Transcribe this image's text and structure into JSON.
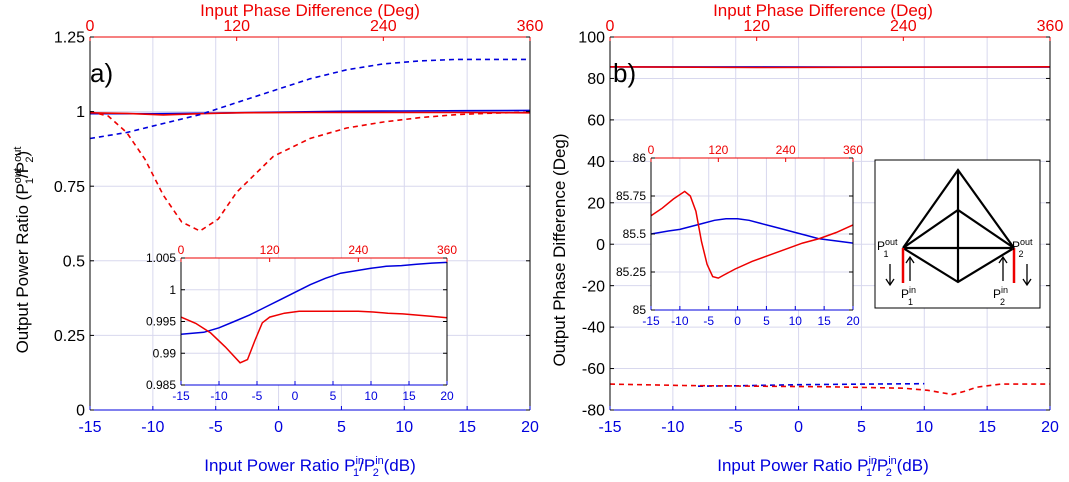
{
  "colors": {
    "blue": "#0000dd",
    "red": "#ee0000",
    "grid": "#d8d8ee",
    "axis": "#000000"
  },
  "labels": {
    "top_axis": "Input Phase Difference (Deg)",
    "bottom_axis": {
      "main": "Input Power Ratio P",
      "sup1": "in",
      "sub1": "1",
      "slash": "/P",
      "sup2": "in",
      "sub2": "2",
      "unit": " (dB)"
    },
    "a_ylabel": {
      "main": "Output Power Ratio (P",
      "sup1": "out",
      "sub1": "1",
      "slash": "/P",
      "sup2": "out",
      "sub2": "2",
      "close": ")"
    },
    "b_ylabel": "Output Phase Difference (Deg)",
    "tag_a": "a)",
    "tag_b": "b)"
  },
  "diagram": {
    "p1out": "P",
    "p1out_sup": "out",
    "p1out_sub": "1",
    "p2out": "P",
    "p2out_sup": "out",
    "p2out_sub": "2",
    "p1in": "P",
    "p1in_sup": "in",
    "p1in_sub": "1",
    "p2in": "P",
    "p2in_sup": "in",
    "p2in_sub": "2"
  },
  "chart_data": [
    {
      "id": "a",
      "type": "line",
      "x_bottom": {
        "ticks": [
          -15,
          -10,
          -5,
          0,
          5,
          10,
          15,
          20
        ],
        "lim": [
          -15,
          20
        ]
      },
      "x_top": {
        "ticks": [
          0,
          120,
          240,
          360
        ],
        "lim": [
          0,
          360
        ]
      },
      "y": {
        "ticks": [
          0,
          0.25,
          0.5,
          0.75,
          1,
          1.25
        ],
        "tick_labels": [
          "0",
          "0.25",
          "0.5",
          "0.75",
          "1",
          "1.25"
        ],
        "lim": [
          0,
          1.25
        ]
      },
      "grid": true,
      "series": [
        {
          "axis": "bottom",
          "color": "blue",
          "style": "solid",
          "x": [
            -15,
            -10,
            -5,
            0,
            5,
            10,
            15,
            20
          ],
          "y": [
            0.993,
            0.993,
            0.995,
            0.998,
            1.001,
            1.002,
            1.003,
            1.004
          ]
        },
        {
          "axis": "top",
          "color": "red",
          "style": "solid",
          "x": [
            0,
            30,
            60,
            90,
            120,
            180,
            240,
            300,
            360
          ],
          "y": [
            0.996,
            0.994,
            0.989,
            0.993,
            0.996,
            0.997,
            0.997,
            0.997,
            0.996
          ]
        },
        {
          "axis": "top",
          "color": "blue",
          "style": "dashed",
          "x": [
            0,
            30,
            60,
            90,
            120,
            150,
            180,
            210,
            240,
            270,
            300,
            330,
            360
          ],
          "y": [
            0.91,
            0.93,
            0.96,
            0.99,
            1.03,
            1.07,
            1.11,
            1.14,
            1.16,
            1.17,
            1.175,
            1.175,
            1.175
          ]
        },
        {
          "axis": "top",
          "color": "red",
          "style": "dashed",
          "x": [
            0,
            15,
            30,
            45,
            60,
            75,
            90,
            105,
            120,
            150,
            180,
            210,
            240,
            270,
            300,
            330,
            360
          ],
          "y": [
            1.0,
            0.985,
            0.93,
            0.84,
            0.72,
            0.63,
            0.6,
            0.64,
            0.73,
            0.85,
            0.91,
            0.945,
            0.965,
            0.98,
            0.99,
            0.995,
            0.998
          ]
        }
      ],
      "inset": {
        "x_bottom": {
          "ticks": [
            -15,
            -10,
            -5,
            0,
            5,
            10,
            15,
            20
          ],
          "lim": [
            -15,
            20
          ]
        },
        "x_top": {
          "ticks": [
            0,
            120,
            240,
            360
          ],
          "lim": [
            0,
            360
          ]
        },
        "y": {
          "ticks": [
            0.985,
            0.99,
            0.995,
            1,
            1.005
          ],
          "tick_labels": [
            "0.985",
            "0.99",
            "0.995",
            "1",
            "1.005"
          ],
          "lim": [
            0.985,
            1.005
          ]
        },
        "series": [
          {
            "axis": "bottom",
            "color": "blue",
            "style": "solid",
            "x": [
              -15,
              -12,
              -10,
              -8,
              -6,
              -4,
              -2,
              0,
              2,
              4,
              6,
              8,
              10,
              12,
              14,
              16,
              18,
              20
            ],
            "y": [
              0.993,
              0.9933,
              0.994,
              0.995,
              0.996,
              0.9972,
              0.9984,
              0.9996,
              1.0008,
              1.0018,
              1.0026,
              1.003,
              1.0034,
              1.0037,
              1.0038,
              1.004,
              1.0042,
              1.0043
            ]
          },
          {
            "axis": "top",
            "color": "red",
            "style": "solid",
            "x": [
              0,
              20,
              40,
              60,
              80,
              90,
              100,
              110,
              120,
              140,
              160,
              180,
              200,
              220,
              240,
              260,
              280,
              300,
              320,
              340,
              360
            ],
            "y": [
              0.9957,
              0.9947,
              0.9932,
              0.991,
              0.9885,
              0.989,
              0.992,
              0.9948,
              0.9957,
              0.9963,
              0.9966,
              0.9966,
              0.9966,
              0.9966,
              0.9966,
              0.9965,
              0.9963,
              0.9962,
              0.996,
              0.9958,
              0.9956
            ]
          }
        ]
      }
    },
    {
      "id": "b",
      "type": "line",
      "x_bottom": {
        "ticks": [
          -15,
          -10,
          -5,
          0,
          5,
          10,
          15,
          20
        ],
        "lim": [
          -15,
          20
        ]
      },
      "x_top": {
        "ticks": [
          0,
          120,
          240,
          360
        ],
        "lim": [
          0,
          360
        ]
      },
      "y": {
        "ticks": [
          -80,
          -60,
          -40,
          -20,
          0,
          20,
          40,
          60,
          80,
          100
        ],
        "tick_labels": [
          "-80",
          "-60",
          "-40",
          "-20",
          "0",
          "20",
          "40",
          "60",
          "80",
          "100"
        ],
        "lim": [
          -80,
          100
        ]
      },
      "grid": true,
      "series": [
        {
          "axis": "bottom",
          "color": "blue",
          "style": "solid",
          "x": [
            -15,
            -5,
            5,
            20
          ],
          "y": [
            85.5,
            85.55,
            85.52,
            85.48
          ]
        },
        {
          "axis": "top",
          "color": "red",
          "style": "solid",
          "x": [
            0,
            120,
            240,
            360
          ],
          "y": [
            85.6,
            85.3,
            85.45,
            85.6
          ]
        },
        {
          "axis": "bottom",
          "color": "blue",
          "style": "dashed",
          "x": [
            -8,
            -5,
            0,
            5,
            10
          ],
          "y": [
            -68.5,
            -68.3,
            -67.8,
            -67.5,
            -67.3
          ]
        },
        {
          "axis": "top",
          "color": "red",
          "style": "dashed",
          "x": [
            0,
            60,
            120,
            180,
            240,
            260,
            280,
            290,
            300,
            320,
            340,
            360
          ],
          "y": [
            -67.5,
            -68.2,
            -68.5,
            -68.8,
            -69.5,
            -70.5,
            -72.5,
            -71,
            -69,
            -67.5,
            -67.5,
            -67.5
          ]
        }
      ],
      "inset": {
        "x_bottom": {
          "ticks": [
            -15,
            -10,
            -5,
            0,
            5,
            10,
            15,
            20
          ],
          "lim": [
            -15,
            20
          ]
        },
        "x_top": {
          "ticks": [
            0,
            120,
            240,
            360
          ],
          "lim": [
            0,
            360
          ]
        },
        "y": {
          "ticks": [
            85,
            85.25,
            85.5,
            85.75,
            86
          ],
          "tick_labels": [
            "85",
            "85.25",
            "85.5",
            "85.75",
            "86"
          ],
          "lim": [
            85,
            86
          ]
        },
        "series": [
          {
            "axis": "bottom",
            "color": "blue",
            "style": "solid",
            "x": [
              -15,
              -12,
              -10,
              -8,
              -6,
              -4,
              -2,
              0,
              2,
              4,
              6,
              8,
              10,
              12,
              14,
              16,
              18,
              20
            ],
            "y": [
              85.5,
              85.52,
              85.53,
              85.55,
              85.57,
              85.59,
              85.6,
              85.6,
              85.59,
              85.57,
              85.55,
              85.53,
              85.51,
              85.49,
              85.47,
              85.46,
              85.45,
              85.44
            ]
          },
          {
            "axis": "top",
            "color": "red",
            "style": "solid",
            "x": [
              0,
              20,
              40,
              60,
              70,
              80,
              90,
              100,
              110,
              120,
              130,
              150,
              180,
              210,
              240,
              270,
              300,
              330,
              360
            ],
            "y": [
              85.62,
              85.67,
              85.73,
              85.78,
              85.75,
              85.65,
              85.45,
              85.3,
              85.22,
              85.21,
              85.23,
              85.27,
              85.32,
              85.36,
              85.4,
              85.44,
              85.47,
              85.51,
              85.56
            ]
          }
        ]
      }
    }
  ]
}
